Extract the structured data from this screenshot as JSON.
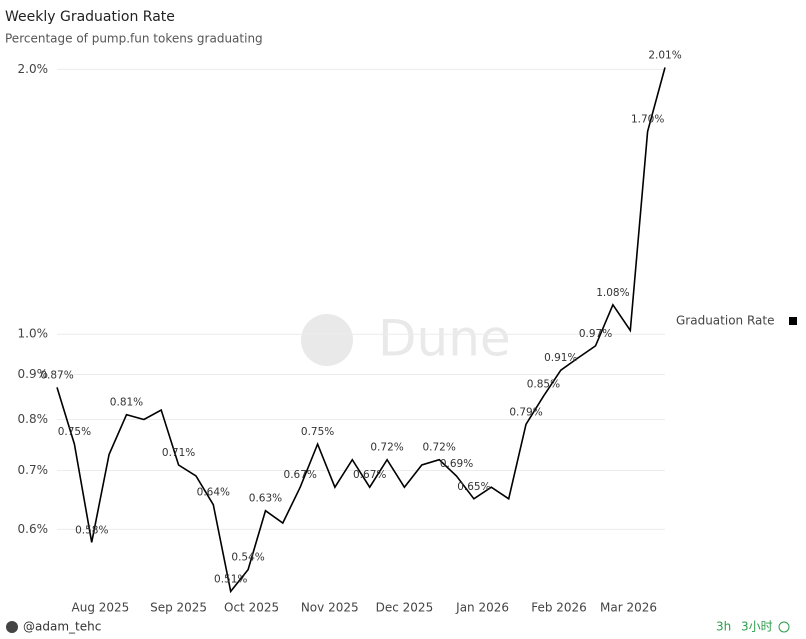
{
  "chart_data": {
    "type": "line",
    "title": "Weekly Graduation Rate",
    "subtitle": "Percentage of pump.fun tokens graduating",
    "log_scale": true,
    "grid": true,
    "legend": "right",
    "ylim": [
      0.5,
      2.05
    ],
    "yticks": [
      {
        "value": 0.6,
        "label": "0.6%"
      },
      {
        "value": 0.7,
        "label": "0.7%"
      },
      {
        "value": 0.8,
        "label": "0.8%"
      },
      {
        "value": 0.9,
        "label": "0.9%"
      },
      {
        "value": 1.0,
        "label": "1.0%"
      },
      {
        "value": 2.0,
        "label": "2.0%"
      }
    ],
    "xlim": [
      0,
      35
    ],
    "xticks": [
      {
        "value": 2.5,
        "label": "Aug 2025"
      },
      {
        "value": 7.0,
        "label": "Sep 2025"
      },
      {
        "value": 11.2,
        "label": "Oct 2025"
      },
      {
        "value": 15.7,
        "label": "Nov 2025"
      },
      {
        "value": 20.0,
        "label": "Dec 2025"
      },
      {
        "value": 24.5,
        "label": "Jan 2026"
      },
      {
        "value": 28.9,
        "label": "Feb 2026"
      },
      {
        "value": 32.9,
        "label": "Mar 2026"
      }
    ],
    "series": [
      {
        "name": "Graduation Rate",
        "color": "#000000",
        "values": [
          0.87,
          0.75,
          0.58,
          0.73,
          0.81,
          0.8,
          0.82,
          0.71,
          0.69,
          0.64,
          0.51,
          0.54,
          0.63,
          0.61,
          0.67,
          0.75,
          0.67,
          0.72,
          0.67,
          0.72,
          0.67,
          0.71,
          0.72,
          0.69,
          0.65,
          0.67,
          0.65,
          0.79,
          0.85,
          0.91,
          0.94,
          0.97,
          1.08,
          1.01,
          1.7,
          2.01
        ],
        "value_labels": [
          "0.87%",
          "0.75%",
          "0.58%",
          null,
          "0.81%",
          null,
          null,
          "0.71%",
          null,
          "0.64%",
          "0.51%",
          "0.54%",
          "0.63%",
          null,
          "0.67%",
          "0.75%",
          null,
          null,
          "0.67%",
          "0.72%",
          null,
          null,
          "0.72%",
          "0.69%",
          "0.65%",
          null,
          null,
          "0.79%",
          "0.85%",
          "0.91%",
          null,
          "0.97%",
          "1.08%",
          null,
          "1.70%",
          "2.01%"
        ]
      }
    ],
    "watermark": "Dune"
  },
  "footer": {
    "author": "@adam_tehc",
    "age": "3h",
    "age_local": "3小时"
  }
}
